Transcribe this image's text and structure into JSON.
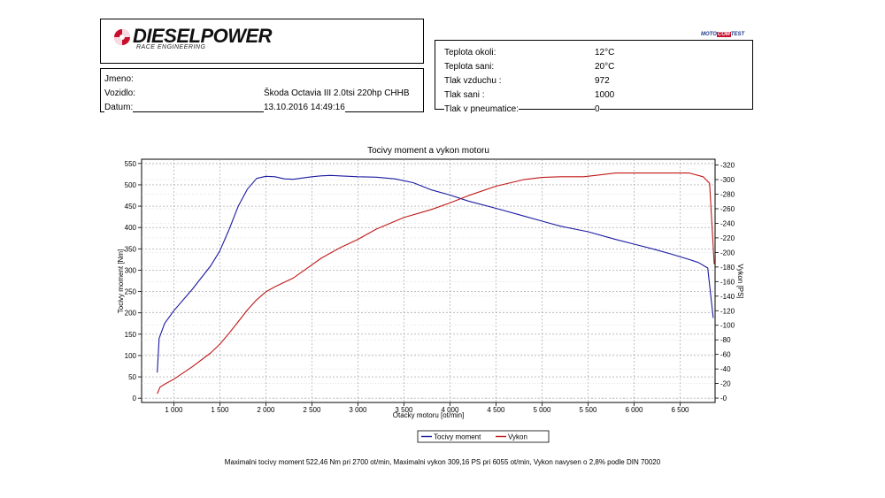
{
  "header": {
    "brand": "DIESELPOWER",
    "brand_subtitle": "RACE ENGINEERING",
    "badge_left": "MOTO",
    "badge_mid": "COM",
    "badge_right": "TEST"
  },
  "info": {
    "name_label": "Jmeno:",
    "name_value": "",
    "vehicle_label": "Vozidlo:",
    "vehicle_value": "Škoda Octavia III 2.0tsi 220hp CHHB",
    "date_label": "Datum:",
    "date_value": "13.10.2016 14:49:16"
  },
  "conditions": [
    {
      "label": "Teplota okoli:",
      "value": "12°C"
    },
    {
      "label": "Teplota sani:",
      "value": "20°C"
    },
    {
      "label": "Tlak vzduchu :",
      "value": "972"
    },
    {
      "label": "Tlak sani :",
      "value": "1000"
    },
    {
      "label": "Tlak v pneumatice:",
      "value": "0"
    }
  ],
  "footer": "Maximalni tocivy moment 522,46 Nm pri 2700 ot/min,  Maximalni vykon 309,16 PS pri 6055 ot/min,  Vykon navysen o 2,8% podle DIN 70020",
  "chart_data": {
    "type": "line",
    "title": "Tocivy moment a vykon motoru",
    "xlabel": "Otacky motoru [ot/min]",
    "ylabel": "Tocivy moment [Nm]",
    "y2label": "Vykon [PS]",
    "xlim": [
      650,
      6880
    ],
    "ylim": [
      -10,
      560
    ],
    "y2lim": [
      -6,
      328
    ],
    "x_ticks": [
      1000,
      1500,
      2000,
      2500,
      3000,
      3500,
      4000,
      4500,
      5000,
      5500,
      6000,
      6500
    ],
    "x_tick_labels": [
      "1 000",
      "1 500",
      "2 000",
      "2 500",
      "3 000",
      "3 500",
      "4 000",
      "4 500",
      "5 000",
      "5 500",
      "6 000",
      "6 500"
    ],
    "y_ticks": [
      0,
      50,
      100,
      150,
      200,
      250,
      300,
      350,
      400,
      450,
      500,
      550
    ],
    "y2_ticks": [
      0,
      20,
      40,
      60,
      80,
      100,
      120,
      140,
      160,
      180,
      200,
      220,
      240,
      260,
      280,
      300,
      320
    ],
    "grid": true,
    "legend": "bottom-center",
    "series": [
      {
        "name": "Tocivy moment",
        "color": "#1a1aa0",
        "axis": "left",
        "points": [
          [
            820,
            60
          ],
          [
            840,
            140
          ],
          [
            900,
            175
          ],
          [
            1000,
            205
          ],
          [
            1200,
            255
          ],
          [
            1400,
            310
          ],
          [
            1500,
            345
          ],
          [
            1600,
            395
          ],
          [
            1700,
            450
          ],
          [
            1800,
            490
          ],
          [
            1900,
            515
          ],
          [
            2000,
            520
          ],
          [
            2100,
            519
          ],
          [
            2200,
            514
          ],
          [
            2300,
            513
          ],
          [
            2400,
            516
          ],
          [
            2500,
            519
          ],
          [
            2600,
            521
          ],
          [
            2700,
            522
          ],
          [
            2800,
            521
          ],
          [
            2900,
            520
          ],
          [
            3000,
            519
          ],
          [
            3200,
            518
          ],
          [
            3400,
            514
          ],
          [
            3600,
            505
          ],
          [
            3800,
            488
          ],
          [
            4000,
            476
          ],
          [
            4200,
            462
          ],
          [
            4500,
            445
          ],
          [
            4800,
            427
          ],
          [
            5000,
            415
          ],
          [
            5200,
            403
          ],
          [
            5500,
            390
          ],
          [
            5800,
            372
          ],
          [
            6000,
            361
          ],
          [
            6200,
            350
          ],
          [
            6400,
            338
          ],
          [
            6600,
            325
          ],
          [
            6700,
            318
          ],
          [
            6800,
            305
          ],
          [
            6860,
            188
          ]
        ]
      },
      {
        "name": "Vykon",
        "color": "#c01818",
        "axis": "right",
        "points": [
          [
            820,
            6
          ],
          [
            850,
            15
          ],
          [
            900,
            19
          ],
          [
            1000,
            26
          ],
          [
            1200,
            43
          ],
          [
            1400,
            62
          ],
          [
            1500,
            74
          ],
          [
            1600,
            89
          ],
          [
            1700,
            105
          ],
          [
            1800,
            121
          ],
          [
            1900,
            135
          ],
          [
            2000,
            146
          ],
          [
            2100,
            153
          ],
          [
            2200,
            159
          ],
          [
            2300,
            165
          ],
          [
            2400,
            174
          ],
          [
            2500,
            183
          ],
          [
            2600,
            192
          ],
          [
            2800,
            206
          ],
          [
            3000,
            218
          ],
          [
            3200,
            232
          ],
          [
            3500,
            248
          ],
          [
            3800,
            259
          ],
          [
            4000,
            268
          ],
          [
            4200,
            278
          ],
          [
            4500,
            291
          ],
          [
            4800,
            300
          ],
          [
            5000,
            303
          ],
          [
            5200,
            304
          ],
          [
            5450,
            304
          ],
          [
            5600,
            306
          ],
          [
            5800,
            309
          ],
          [
            6055,
            309
          ],
          [
            6300,
            309
          ],
          [
            6600,
            309
          ],
          [
            6750,
            304
          ],
          [
            6820,
            295
          ],
          [
            6870,
            184
          ]
        ]
      }
    ]
  }
}
